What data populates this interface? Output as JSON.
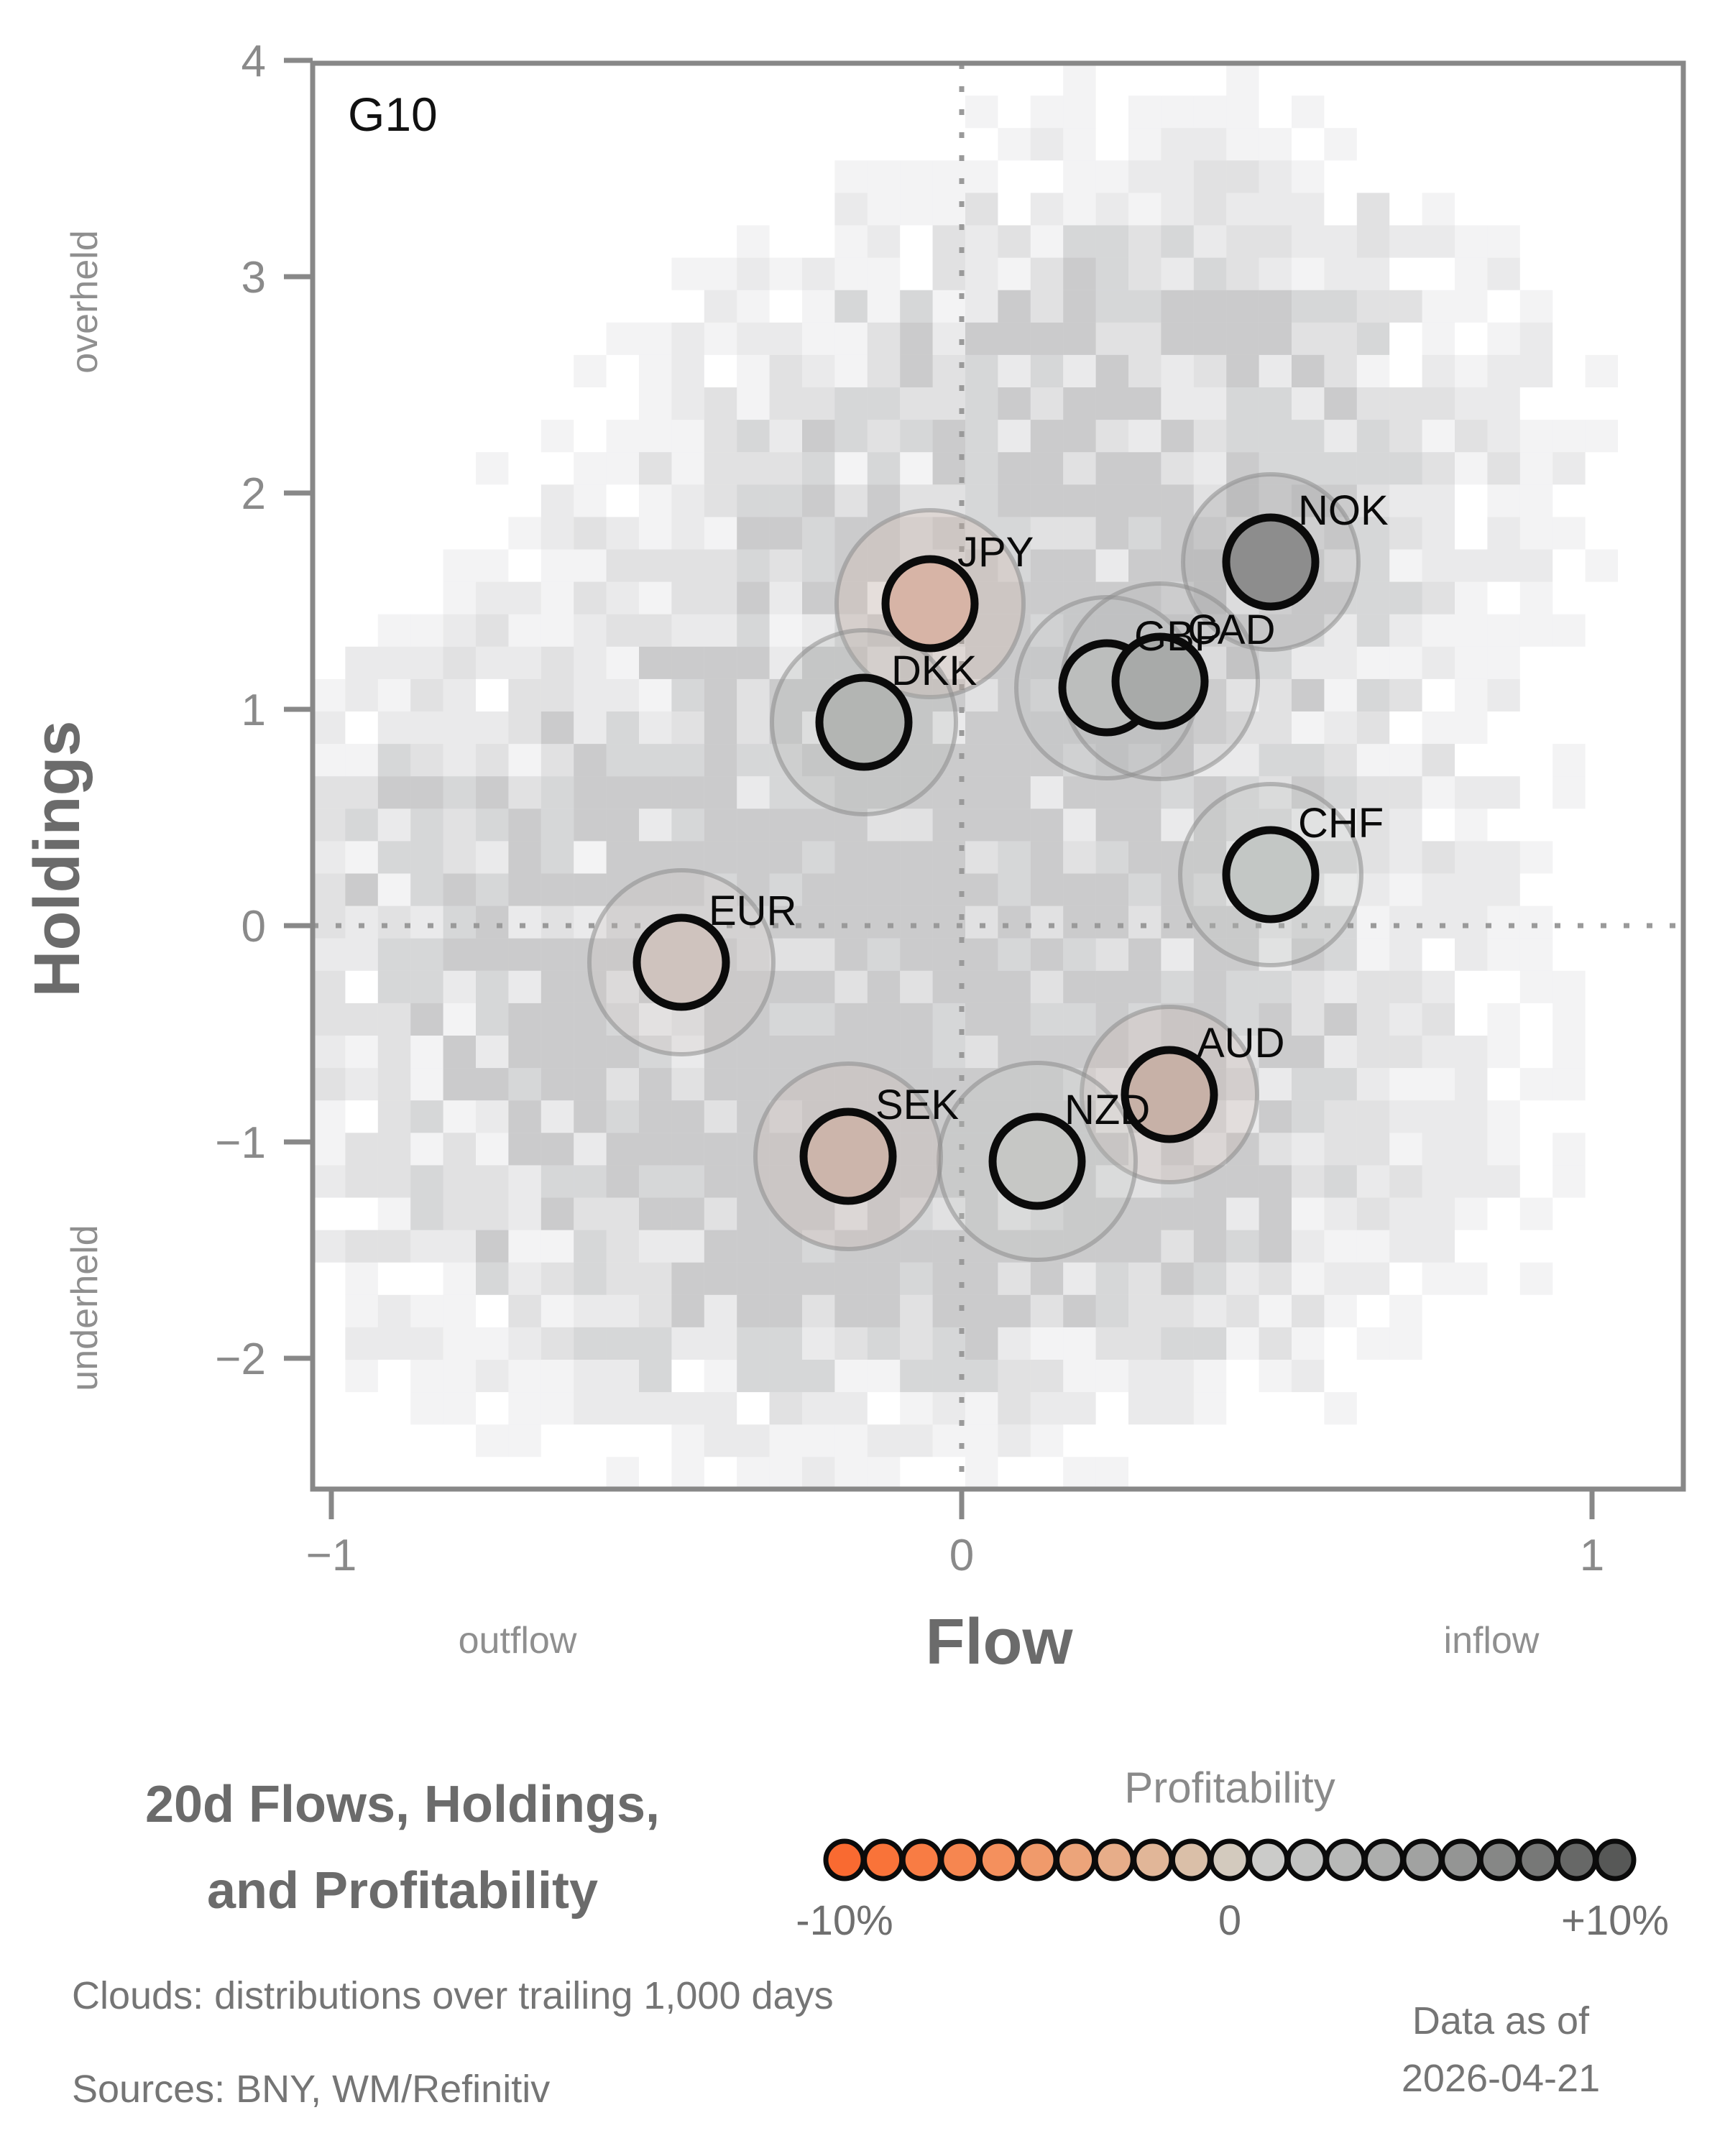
{
  "panel_label": "G10",
  "title_block": {
    "line1": "20d Flows, Holdings,",
    "line2": "and Profitability"
  },
  "axes": {
    "x": {
      "label": "Flow",
      "left_hint": "outflow",
      "right_hint": "inflow",
      "ticks": [
        -1,
        0,
        1
      ],
      "range": [
        -1.03,
        1.15
      ]
    },
    "y": {
      "label": "Holdings",
      "top_hint": "overheld",
      "bottom_hint": "underheld",
      "ticks": [
        4,
        3,
        2,
        1,
        0,
        -1,
        -2
      ],
      "range": [
        -2.6,
        4.0
      ]
    }
  },
  "legend": {
    "title": "Profitability",
    "min_label": "-10%",
    "mid_label": "0",
    "max_label": "+10%",
    "scale_range_pct": [
      -10,
      10
    ],
    "colors": [
      "#f96a31",
      "#f97339",
      "#f87c44",
      "#f68650",
      "#f4905d",
      "#f09a6b",
      "#eca47a",
      "#e7ad89",
      "#e1b698",
      "#dabfa8",
      "#d3cabe",
      "#cbcbc9",
      "#c2c3c2",
      "#b8b9b8",
      "#adaead",
      "#a1a2a1",
      "#949594",
      "#868786",
      "#777877",
      "#676867",
      "#575857"
    ]
  },
  "footnotes": {
    "clouds": "Clouds:  distributions over trailing 1,000 days",
    "sources": "Sources:  BNY, WM/Refinitiv",
    "data_as_of_line1": "Data as of",
    "data_as_of_line2": "2026-04-21"
  },
  "chart_data": {
    "type": "scatter",
    "title": "20d Flows, Holdings, and Profitability",
    "subtitle_group": "G10",
    "xlabel": "Flow",
    "ylabel": "Holdings",
    "xlim": [
      -1.03,
      1.15
    ],
    "ylim": [
      -2.6,
      4.0
    ],
    "x_axis_hints": [
      "outflow",
      "inflow"
    ],
    "y_axis_hints": [
      "overheld",
      "underheld"
    ],
    "color_encoding": "profitability_pct mapped from orange (-10%) to dark gray (+10%)",
    "background": "2D histogram cloud of trailing 1,000-day distributions (gray mosaic)",
    "series": [
      {
        "name": "JPY",
        "flow": -0.05,
        "holdings": 1.49,
        "profitability_pct": -3.5,
        "color": "#d7b4a6",
        "cloud_radius_px": 130
      },
      {
        "name": "DKK",
        "flow": -0.155,
        "holdings": 0.94,
        "profitability_pct": 2.0,
        "color": "#b3b5b3",
        "cloud_radius_px": 128
      },
      {
        "name": "NOK",
        "flow": 0.49,
        "holdings": 1.68,
        "profitability_pct": 6.5,
        "color": "#8d8d8d",
        "cloud_radius_px": 122
      },
      {
        "name": "GBP",
        "flow": 0.23,
        "holdings": 1.1,
        "profitability_pct": 1.5,
        "color": "#bcbebd",
        "cloud_radius_px": 126
      },
      {
        "name": "CAD",
        "flow": 0.315,
        "holdings": 1.13,
        "profitability_pct": 3.0,
        "color": "#a8aaa9",
        "cloud_radius_px": 136
      },
      {
        "name": "CHF",
        "flow": 0.49,
        "holdings": 0.235,
        "profitability_pct": 0.5,
        "color": "#c3c7c5",
        "cloud_radius_px": 126
      },
      {
        "name": "EUR",
        "flow": -0.445,
        "holdings": -0.17,
        "profitability_pct": -1.5,
        "color": "#cfc3be",
        "cloud_radius_px": 128
      },
      {
        "name": "AUD",
        "flow": 0.33,
        "holdings": -0.78,
        "profitability_pct": -3.0,
        "color": "#c7b1a7",
        "cloud_radius_px": 122
      },
      {
        "name": "NZD",
        "flow": 0.12,
        "holdings": -1.09,
        "profitability_pct": 0.5,
        "color": "#c6c7c5",
        "cloud_radius_px": 137
      },
      {
        "name": "SEK",
        "flow": -0.18,
        "holdings": -1.065,
        "profitability_pct": -3.0,
        "color": "#ccb5ab",
        "cloud_radius_px": 129
      }
    ]
  },
  "heatmap": {
    "seed": 20260421,
    "cols": 42,
    "rows": 44,
    "cell_w": 45.4,
    "cell_h": 45.1,
    "cell_color": "#696a6e",
    "jitter": [
      0.3,
      1.4
    ],
    "levels": [
      [
        0.62,
        0.35
      ],
      [
        0.46,
        0.27
      ],
      [
        0.33,
        0.2
      ],
      [
        0.22,
        0.14
      ],
      [
        0.135,
        0.08
      ]
    ],
    "components": [
      {
        "mx": 0.02,
        "my": 0.55,
        "sx": 0.44,
        "sy": 1.25,
        "w": 1.0
      },
      {
        "mx": -0.18,
        "my": -1.15,
        "sx": 0.52,
        "sy": 0.72,
        "w": 0.85
      },
      {
        "mx": 0.35,
        "my": 2.5,
        "sx": 0.38,
        "sy": 0.78,
        "w": 0.5
      },
      {
        "mx": -0.82,
        "my": 0.35,
        "sx": 0.2,
        "sy": 0.55,
        "w": 0.45
      }
    ]
  }
}
